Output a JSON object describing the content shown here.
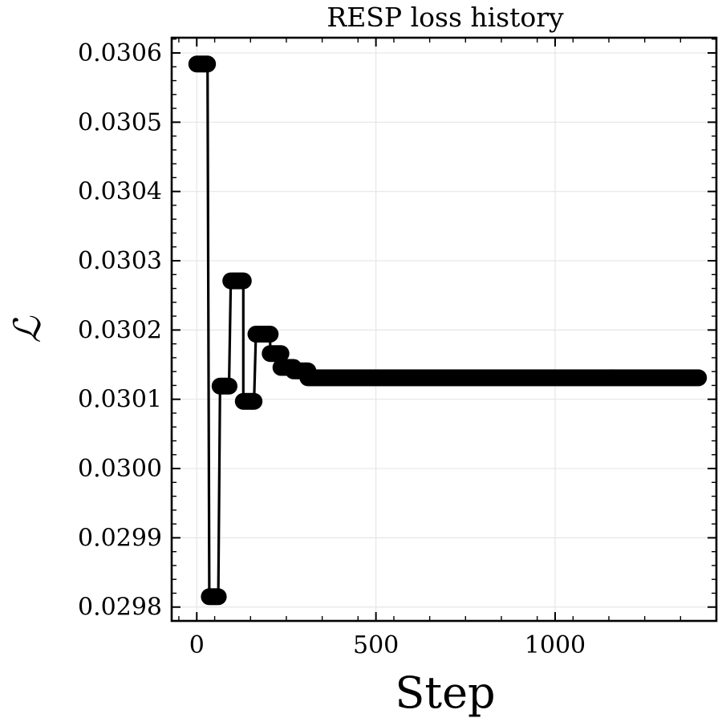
{
  "chart_data": {
    "type": "line",
    "title": "RESP loss history",
    "xlabel": "Step",
    "ylabel": "ℒ",
    "xlim": [
      -70,
      1450
    ],
    "ylim": [
      0.02978,
      0.030622
    ],
    "xticks": [
      0,
      500,
      1000
    ],
    "xtick_labels": [
      "0",
      "500",
      "1000"
    ],
    "yticks": [
      0.0298,
      0.0299,
      0.03,
      0.0301,
      0.0302,
      0.0303,
      0.0304,
      0.0305,
      0.0306
    ],
    "ytick_labels": [
      "0.0298",
      "0.0299",
      "0.0300",
      "0.0301",
      "0.0302",
      "0.0303",
      "0.0304",
      "0.0305",
      "0.0306"
    ],
    "grid": true,
    "marker": "circle",
    "color": "#000000",
    "segments": [
      {
        "x0": 0,
        "x1": 30,
        "y": 0.030584
      },
      {
        "x0": 35,
        "x1": 60,
        "y": 0.029815
      },
      {
        "x0": 65,
        "x1": 90,
        "y": 0.030119
      },
      {
        "x0": 95,
        "x1": 130,
        "y": 0.030271
      },
      {
        "x0": 130,
        "x1": 160,
        "y": 0.030097
      },
      {
        "x0": 165,
        "x1": 205,
        "y": 0.030194
      },
      {
        "x0": 205,
        "x1": 235,
        "y": 0.030166
      },
      {
        "x0": 235,
        "x1": 270,
        "y": 0.030146
      },
      {
        "x0": 270,
        "x1": 310,
        "y": 0.030141
      },
      {
        "x0": 310,
        "x1": 1400,
        "y": 0.030131
      }
    ]
  }
}
